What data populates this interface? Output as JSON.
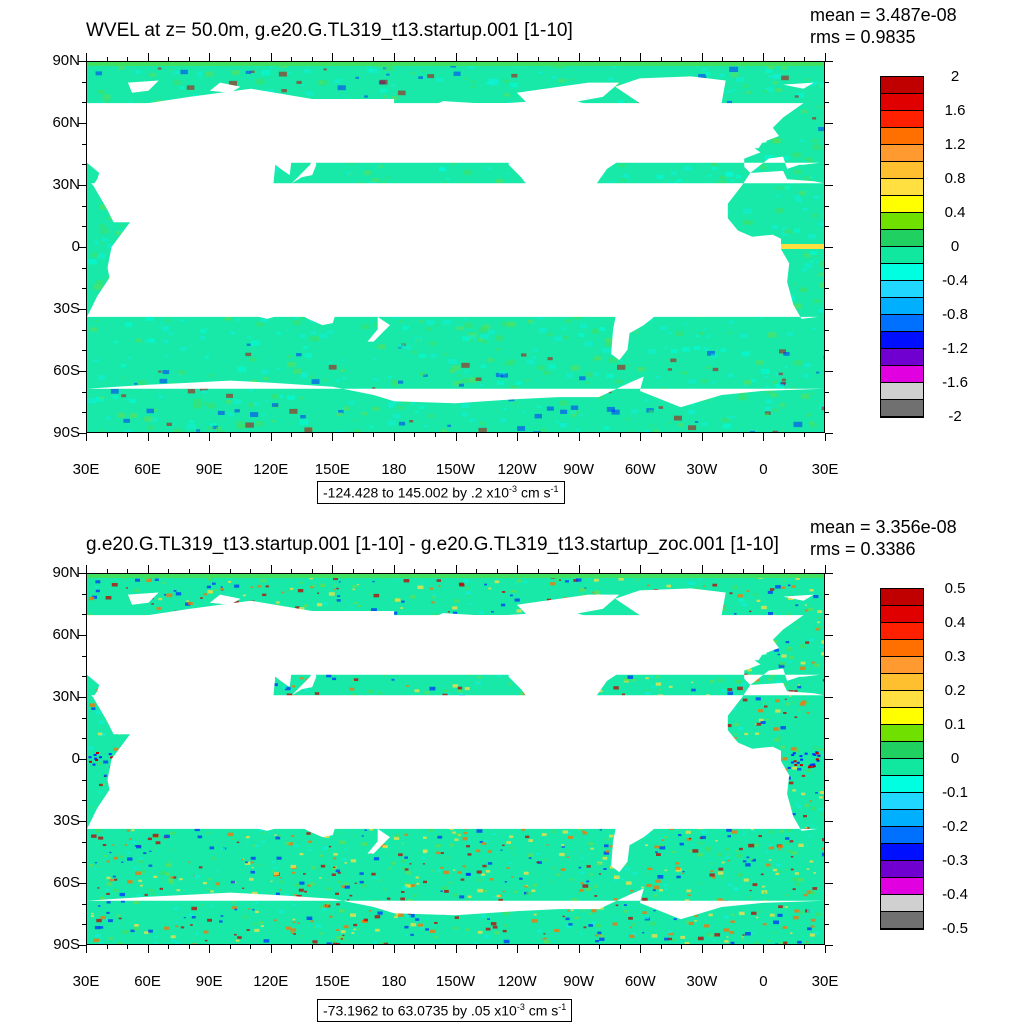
{
  "panels": [
    {
      "title": "WVEL at z=  50.0m, g.e20.G.TL319_t13.startup.001 [1-10]",
      "stats": {
        "mean": "mean = 3.487e-08",
        "rms": "rms = 0.9835"
      },
      "range": {
        "text": "-124.428 to 145.002 by .2 x10",
        "exp": "-3",
        "unit": " cm s",
        "unit_exp": "-1"
      },
      "colorbar": {
        "labels": [
          "2",
          "1.6",
          "1.2",
          "0.8",
          "0.4",
          "0",
          "-0.4",
          "-0.8",
          "-1.2",
          "-1.6",
          "-2"
        ],
        "colors": [
          "#c00000",
          "#e00000",
          "#ff2000",
          "#ff7000",
          "#ff9a30",
          "#ffc030",
          "#ffe040",
          "#ffff00",
          "#70e000",
          "#20d060",
          "#10e8a0",
          "#00ffe0",
          "#20d8ff",
          "#00b0ff",
          "#0070ff",
          "#0010ff",
          "#7000d0",
          "#e000e0",
          "#d0d0d0",
          "#707070"
        ]
      }
    },
    {
      "title": "g.e20.G.TL319_t13.startup.001 [1-10] - g.e20.G.TL319_t13.startup_zoc.001 [1-10]",
      "stats": {
        "mean": "mean = 3.356e-08",
        "rms": "rms = 0.3386"
      },
      "range": {
        "text": "-73.1962 to 63.0735 by .05 x10",
        "exp": "-3",
        "unit": " cm s",
        "unit_exp": "-1"
      },
      "colorbar": {
        "labels": [
          "0.5",
          "0.4",
          "0.3",
          "0.2",
          "0.1",
          "0",
          "-0.1",
          "-0.2",
          "-0.3",
          "-0.4",
          "-0.5"
        ],
        "colors": [
          "#c00000",
          "#e00000",
          "#ff2000",
          "#ff7000",
          "#ff9a30",
          "#ffc030",
          "#ffe040",
          "#ffff00",
          "#70e000",
          "#20d060",
          "#10e8a0",
          "#00ffe0",
          "#20d8ff",
          "#00b0ff",
          "#0070ff",
          "#0010ff",
          "#7000d0",
          "#e000e0",
          "#d0d0d0",
          "#707070"
        ]
      }
    }
  ],
  "axes": {
    "y_labels": [
      "90N",
      "60N",
      "30N",
      "0",
      "30S",
      "60S",
      "90S"
    ],
    "x_labels": [
      "30E",
      "60E",
      "90E",
      "120E",
      "150E",
      "180",
      "150W",
      "120W",
      "90W",
      "60W",
      "30W",
      "0",
      "30E"
    ]
  },
  "ocean_colors": {
    "base": "#18e8a8",
    "cyan": "#10f0d8",
    "green": "#40e060",
    "equator_red": "#e02000",
    "equator_yellow": "#ffe040",
    "noise_red": "#c00000",
    "noise_blue": "#0030ff"
  }
}
